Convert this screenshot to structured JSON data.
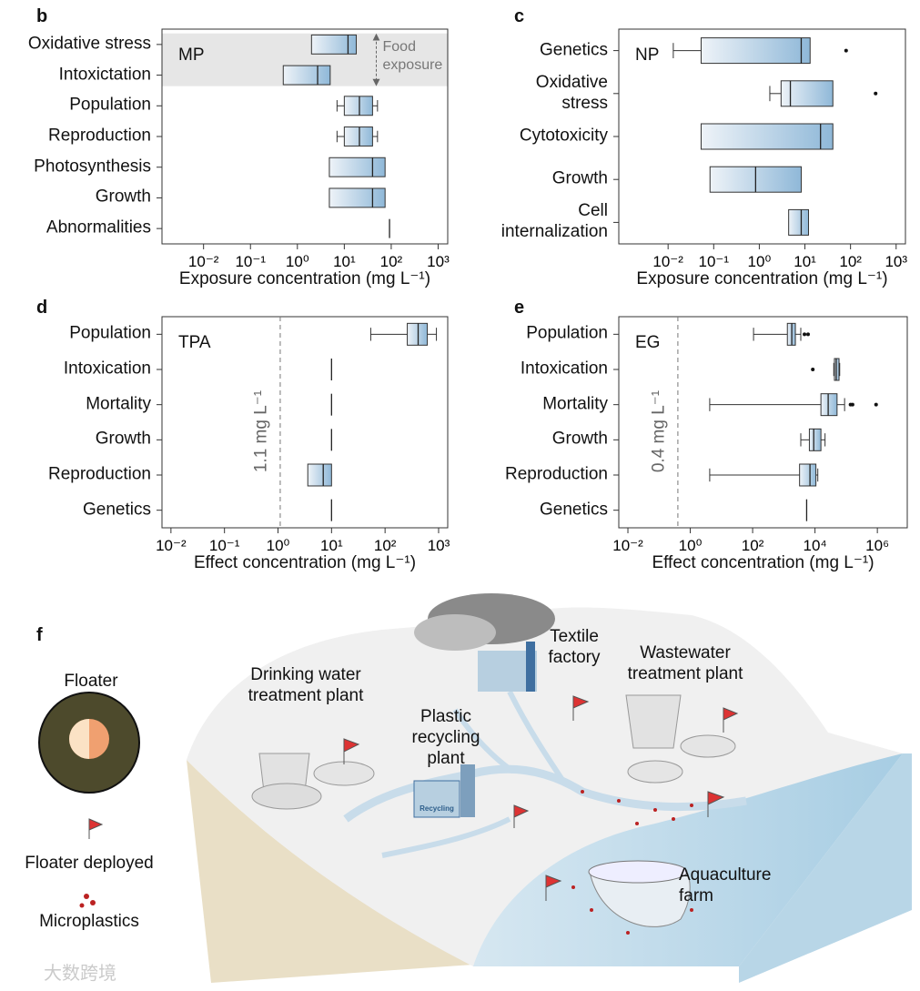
{
  "chart_data": [
    {
      "type": "box",
      "panel": "b",
      "label": "MP",
      "xscale": "log",
      "categories": [
        "Oxidative stress",
        "Intoxictation",
        "Population",
        "Reproduction",
        "Photosynthesis",
        "Growth",
        "Abnormalities"
      ],
      "boxes": [
        {
          "q1": 2,
          "med": 12,
          "q3": 18
        },
        {
          "q1": 0.5,
          "med": 2.7,
          "q3": 5
        },
        {
          "whislo": 7,
          "q1": 10,
          "med": 21,
          "q3": 40,
          "whishi": 51
        },
        {
          "whislo": 7,
          "q1": 10,
          "med": 21,
          "q3": 40,
          "whishi": 51
        },
        {
          "q1": 4.8,
          "med": 40,
          "q3": 74
        },
        {
          "q1": 4.8,
          "med": 40,
          "q3": 74
        },
        {
          "med": 92
        }
      ],
      "highlight": {
        "categories": [
          0,
          1
        ],
        "label": "Food\nexposure"
      },
      "xlabel": "Exposure concentration (mg L⁻¹)",
      "xlim": [
        0.0013,
        1600
      ],
      "xticks": [
        {
          "value": 0.01,
          "label": "10⁻²"
        },
        {
          "value": 0.1,
          "label": "10⁻¹"
        },
        {
          "value": 1,
          "label": "10⁰"
        },
        {
          "value": 10,
          "label": "10¹"
        },
        {
          "value": 100,
          "label": "10²"
        },
        {
          "value": 1000,
          "label": "10³"
        }
      ],
      "color": "#8fb8d8"
    },
    {
      "type": "box",
      "panel": "c",
      "label": "NP",
      "xscale": "log",
      "categories": [
        "Genetics",
        "Oxidative\nstress",
        "Cytotoxicity",
        "Growth",
        "Cell\ninternalization"
      ],
      "boxes": [
        {
          "whislo": 0.013,
          "q1": 0.053,
          "med": 8.3,
          "q3": 13,
          "fliers": [
            80
          ]
        },
        {
          "whislo": 1.7,
          "q1": 3,
          "med": 4.8,
          "q3": 41,
          "fliers": [
            355
          ]
        },
        {
          "q1": 0.053,
          "med": 22,
          "q3": 41
        },
        {
          "q1": 0.083,
          "med": 0.83,
          "q3": 8.3
        },
        {
          "q1": 4.4,
          "med": 8.3,
          "q3": 12
        }
      ],
      "xlabel": "Exposure concentration (mg L⁻¹)",
      "xlim": [
        0.00083,
        1600
      ],
      "xticks": [
        {
          "value": 0.01,
          "label": "10⁻²"
        },
        {
          "value": 0.1,
          "label": "10⁻¹"
        },
        {
          "value": 1,
          "label": "10⁰"
        },
        {
          "value": 10,
          "label": "10¹"
        },
        {
          "value": 100,
          "label": "10²"
        },
        {
          "value": 1000,
          "label": "10³"
        }
      ],
      "color": "#8fb8d8"
    },
    {
      "type": "box",
      "panel": "d",
      "label": "TPA",
      "xscale": "log",
      "categories": [
        "Population",
        "Intoxication",
        "Mortality",
        "Growth",
        "Reproduction",
        "Genetics"
      ],
      "boxes": [
        {
          "whislo": 54,
          "q1": 260,
          "med": 415,
          "q3": 615,
          "whishi": 910
        },
        {
          "med": 10
        },
        {
          "med": 10
        },
        {
          "med": 10
        },
        {
          "q1": 3.6,
          "med": 7,
          "q3": 10
        },
        {
          "med": 10
        }
      ],
      "reference_line": {
        "value": 1.1,
        "label": "1.1 mg L⁻¹"
      },
      "xlabel": "Effect concentration (mg L⁻¹)",
      "xlim": [
        0.0068,
        1480
      ],
      "xticks": [
        {
          "value": 0.01,
          "label": "10⁻²"
        },
        {
          "value": 0.1,
          "label": "10⁻¹"
        },
        {
          "value": 1,
          "label": "10⁰"
        },
        {
          "value": 10,
          "label": "10¹"
        },
        {
          "value": 100,
          "label": "10²"
        },
        {
          "value": 1000,
          "label": "10³"
        }
      ],
      "color": "#8fb8d8"
    },
    {
      "type": "box",
      "panel": "e",
      "label": "EG",
      "xscale": "log",
      "categories": [
        "Population",
        "Intoxication",
        "Mortality",
        "Growth",
        "Reproduction",
        "Genetics"
      ],
      "boxes": [
        {
          "whislo": 107,
          "q1": 1300,
          "med": 1800,
          "q3": 2350,
          "whishi": 3500,
          "fliers": [
            4600,
            6000
          ]
        },
        {
          "whislo": 40000,
          "q1": 42000,
          "med": 48000,
          "q3": 59000,
          "whishi": 62000,
          "fliers": [
            8500
          ]
        },
        {
          "whislo": 4.2,
          "q1": 15500,
          "med": 26500,
          "q3": 51000,
          "whishi": 89000,
          "fliers": [
            138000,
            160000,
            910000
          ]
        },
        {
          "whislo": 3500,
          "q1": 6600,
          "med": 9100,
          "q3": 15500,
          "whishi": 21000
        },
        {
          "whislo": 4.2,
          "q1": 3200,
          "med": 6900,
          "q3": 10700,
          "whishi": 12300
        },
        {
          "med": 5400
        }
      ],
      "reference_line": {
        "value": 0.4,
        "label": "0.4 mg L⁻¹"
      },
      "xlabel": "Effect concentration (mg L⁻¹)",
      "xlim": [
        0.0051,
        9100000
      ],
      "xticks": [
        {
          "value": 0.01,
          "label": "10⁻²"
        },
        {
          "value": 1,
          "label": "10⁰"
        },
        {
          "value": 100,
          "label": "10²"
        },
        {
          "value": 10000,
          "label": "10⁴"
        },
        {
          "value": 1000000,
          "label": "10⁶"
        }
      ],
      "color": "#8fb8d8"
    }
  ],
  "illustration": {
    "panel": "f",
    "floater": "Floater",
    "legend": [
      "Floater deployed",
      "Microplastics"
    ],
    "sites": [
      "Drinking water\ntreatment plant",
      "Textile\nfactory",
      "Wastewater\ntreatment plant",
      "Plastic\nrecycling\nplant",
      "Aquaculture\nfarm"
    ],
    "sign": "Recycling",
    "watermark": "大数跨境"
  }
}
